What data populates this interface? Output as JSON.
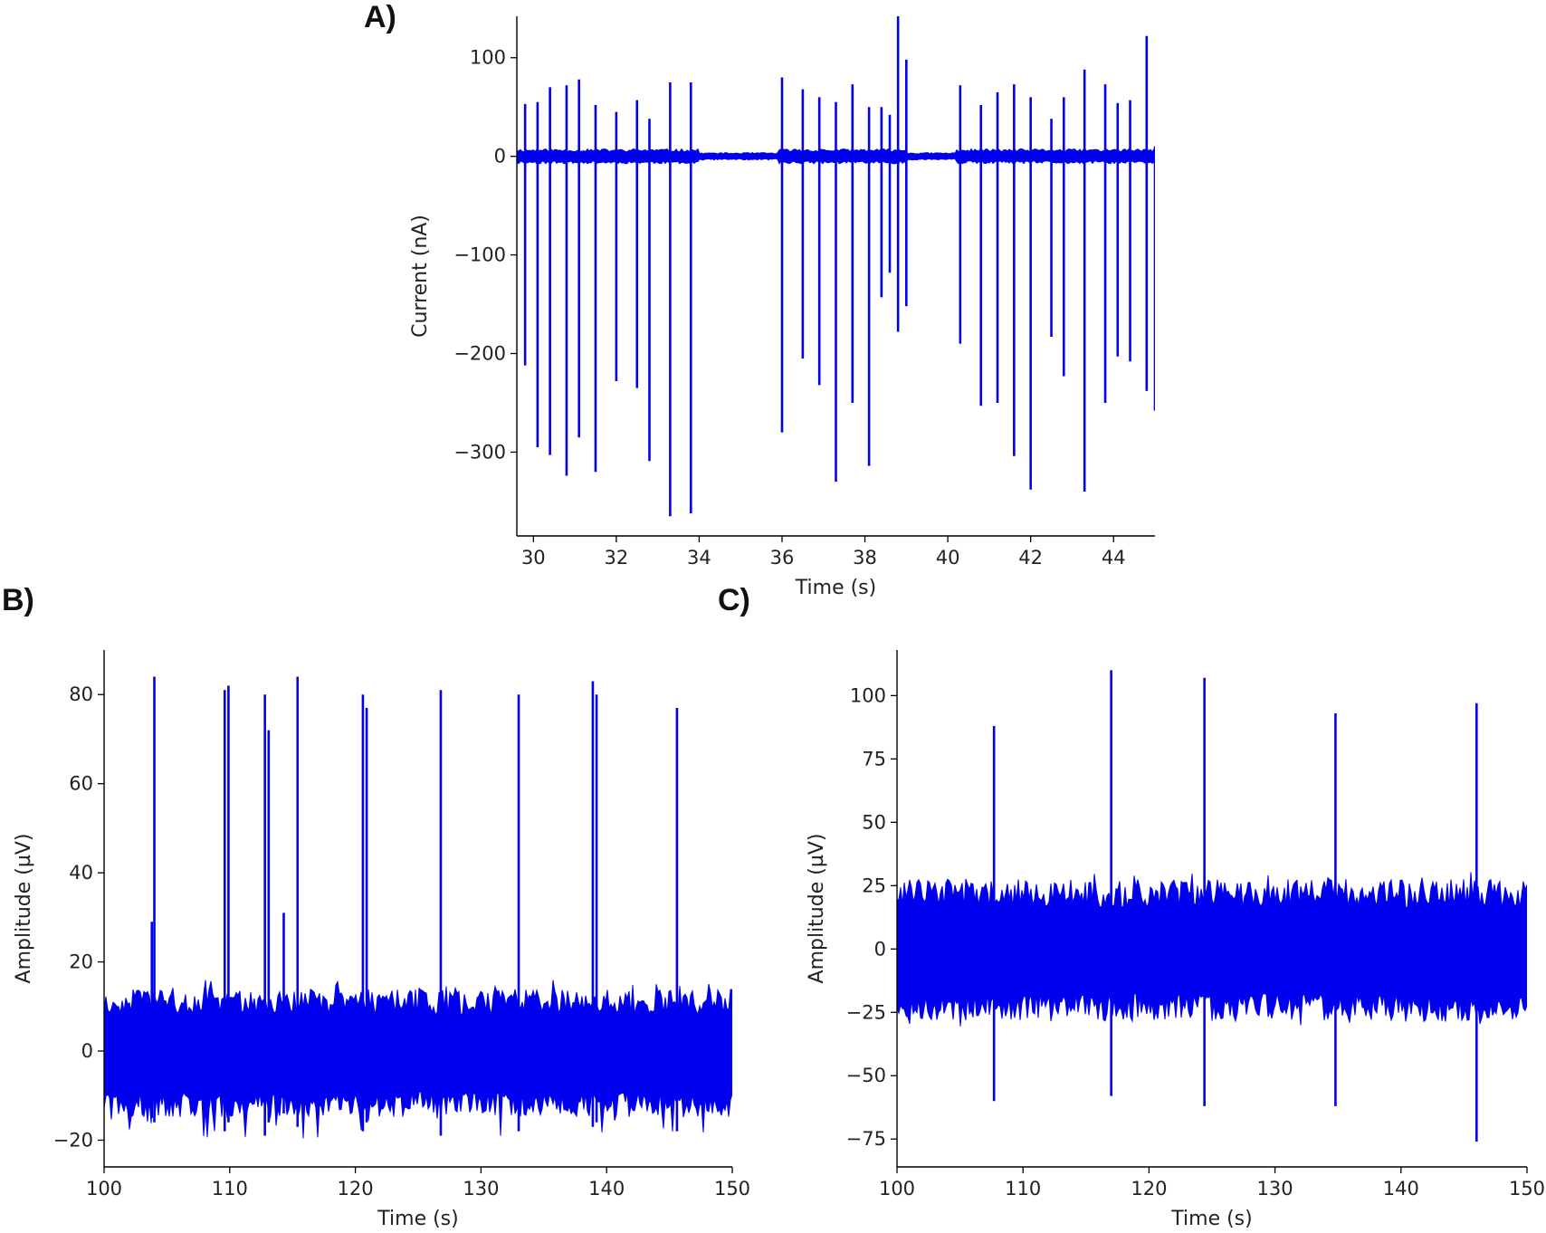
{
  "chart_data": [
    {
      "panel": "A)",
      "type": "line",
      "xlabel": "Time (s)",
      "ylabel": "Current (nA)",
      "xlim": [
        29.6,
        45.0
      ],
      "ylim": [
        -385,
        142
      ],
      "xticks": [
        30,
        32,
        34,
        36,
        38,
        40,
        42,
        44
      ],
      "yticks": [
        100,
        0,
        -100,
        -200,
        -300
      ],
      "ytick_labels": [
        "100",
        "0",
        "−100",
        "−200",
        "−300"
      ],
      "color": "#0000ee",
      "grid": false,
      "noise_band": [
        -6,
        6
      ],
      "quiet_intervals": [
        [
          34.0,
          35.9
        ],
        [
          39.0,
          40.2
        ]
      ],
      "quiet_band": [
        -3,
        3
      ],
      "spikes": [
        {
          "t": 29.8,
          "pos": 53,
          "neg": -212
        },
        {
          "t": 30.1,
          "pos": 55,
          "neg": -295
        },
        {
          "t": 30.4,
          "pos": 70,
          "neg": -303
        },
        {
          "t": 30.8,
          "pos": 72,
          "neg": -324
        },
        {
          "t": 31.1,
          "pos": 78,
          "neg": -285
        },
        {
          "t": 31.5,
          "pos": 52,
          "neg": -320
        },
        {
          "t": 32.0,
          "pos": 45,
          "neg": -228
        },
        {
          "t": 32.5,
          "pos": 57,
          "neg": -235
        },
        {
          "t": 32.8,
          "pos": 38,
          "neg": -309
        },
        {
          "t": 33.3,
          "pos": 75,
          "neg": -365
        },
        {
          "t": 33.8,
          "pos": 75,
          "neg": -362
        },
        {
          "t": 36.0,
          "pos": 80,
          "neg": -280
        },
        {
          "t": 36.5,
          "pos": 68,
          "neg": -205
        },
        {
          "t": 36.9,
          "pos": 60,
          "neg": -232
        },
        {
          "t": 37.3,
          "pos": 55,
          "neg": -330
        },
        {
          "t": 37.7,
          "pos": 73,
          "neg": -250
        },
        {
          "t": 38.1,
          "pos": 50,
          "neg": -314
        },
        {
          "t": 38.4,
          "pos": 50,
          "neg": -143
        },
        {
          "t": 38.6,
          "pos": 42,
          "neg": -118
        },
        {
          "t": 38.8,
          "pos": 142,
          "neg": -178
        },
        {
          "t": 39.0,
          "pos": 98,
          "neg": -152
        },
        {
          "t": 40.3,
          "pos": 72,
          "neg": -190
        },
        {
          "t": 40.8,
          "pos": 52,
          "neg": -253
        },
        {
          "t": 41.2,
          "pos": 65,
          "neg": -250
        },
        {
          "t": 41.6,
          "pos": 73,
          "neg": -304
        },
        {
          "t": 42.0,
          "pos": 60,
          "neg": -338
        },
        {
          "t": 42.5,
          "pos": 38,
          "neg": -183
        },
        {
          "t": 42.8,
          "pos": 60,
          "neg": -223
        },
        {
          "t": 43.3,
          "pos": 88,
          "neg": -340
        },
        {
          "t": 43.8,
          "pos": 73,
          "neg": -250
        },
        {
          "t": 44.1,
          "pos": 54,
          "neg": -203
        },
        {
          "t": 44.4,
          "pos": 57,
          "neg": -208
        },
        {
          "t": 44.8,
          "pos": 122,
          "neg": -238
        },
        {
          "t": 45.0,
          "pos": 10,
          "neg": -258
        }
      ]
    },
    {
      "panel": "B)",
      "type": "line",
      "xlabel": "Time (s)",
      "ylabel": "Amplitude (µV)",
      "xlim": [
        100,
        150
      ],
      "ylim": [
        -26,
        90
      ],
      "xticks": [
        100,
        110,
        120,
        130,
        140,
        150
      ],
      "yticks": [
        80,
        60,
        40,
        20,
        0,
        -20
      ],
      "ytick_labels": [
        "80",
        "60",
        "40",
        "20",
        "0",
        "−20"
      ],
      "color": "#0000ee",
      "grid": false,
      "noise_band": [
        -12,
        11
      ],
      "noise_peaks": [
        -20,
        16
      ],
      "spikes": [
        {
          "t": 103.8,
          "pos": 29,
          "neg": -15
        },
        {
          "t": 104.0,
          "pos": 84,
          "neg": -16
        },
        {
          "t": 109.6,
          "pos": 81,
          "neg": -18
        },
        {
          "t": 109.9,
          "pos": 82,
          "neg": -16
        },
        {
          "t": 112.8,
          "pos": 80,
          "neg": -19
        },
        {
          "t": 113.1,
          "pos": 72,
          "neg": -16
        },
        {
          "t": 114.3,
          "pos": 31,
          "neg": -14
        },
        {
          "t": 115.4,
          "pos": 84,
          "neg": -17
        },
        {
          "t": 120.6,
          "pos": 80,
          "neg": -18
        },
        {
          "t": 120.9,
          "pos": 77,
          "neg": -16
        },
        {
          "t": 126.8,
          "pos": 81,
          "neg": -19
        },
        {
          "t": 133.0,
          "pos": 80,
          "neg": -18
        },
        {
          "t": 138.9,
          "pos": 83,
          "neg": -17
        },
        {
          "t": 139.2,
          "pos": 80,
          "neg": -16
        },
        {
          "t": 145.6,
          "pos": 77,
          "neg": -18
        }
      ]
    },
    {
      "panel": "C)",
      "type": "line",
      "xlabel": "Time (s)",
      "ylabel": "Amplitude (µV)",
      "xlim": [
        100,
        150
      ],
      "ylim": [
        -86,
        118
      ],
      "xticks": [
        100,
        110,
        120,
        130,
        140,
        150
      ],
      "yticks": [
        100,
        75,
        50,
        25,
        0,
        -25,
        -50,
        -75
      ],
      "ytick_labels": [
        "100",
        "75",
        "50",
        "25",
        "0",
        "−25",
        "−50",
        "−75"
      ],
      "color": "#0000ee",
      "grid": false,
      "noise_band": [
        -23,
        22
      ],
      "noise_peaks": [
        -31,
        31
      ],
      "spikes": [
        {
          "t": 107.7,
          "pos": 88,
          "neg": -60
        },
        {
          "t": 117.0,
          "pos": 110,
          "neg": -58
        },
        {
          "t": 124.4,
          "pos": 107,
          "neg": -62
        },
        {
          "t": 134.8,
          "pos": 93,
          "neg": -62
        },
        {
          "t": 146.0,
          "pos": 97,
          "neg": -76
        }
      ]
    }
  ]
}
